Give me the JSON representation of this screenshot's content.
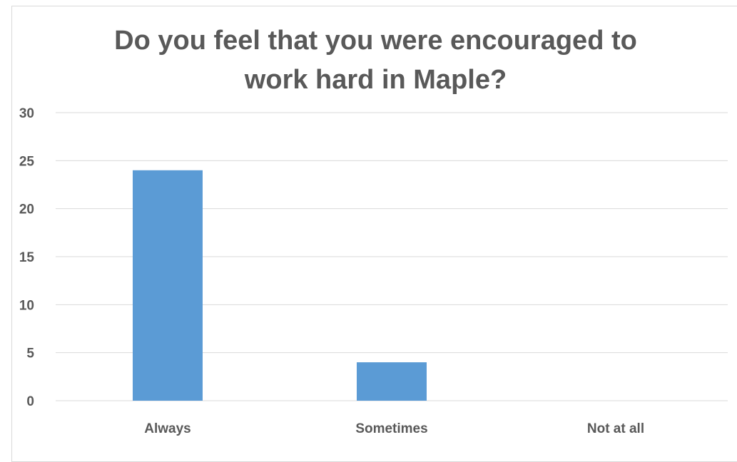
{
  "chart_data": {
    "type": "bar",
    "title": "Do you feel that you were encouraged to work hard in Maple?",
    "title_lines": [
      "Do you feel that you were encouraged to",
      "work hard in Maple?"
    ],
    "categories": [
      "Always",
      "Sometimes",
      "Not at all"
    ],
    "values": [
      24,
      4,
      0
    ],
    "xlabel": "",
    "ylabel": "",
    "ylim": [
      0,
      30
    ],
    "yticks": [
      "0",
      "5",
      "10",
      "15",
      "20",
      "25",
      "30"
    ],
    "grid": true,
    "legend": "none",
    "colors": {
      "bar": "#5b9bd5",
      "grid": "#d9d9d9",
      "text": "#595959"
    }
  }
}
